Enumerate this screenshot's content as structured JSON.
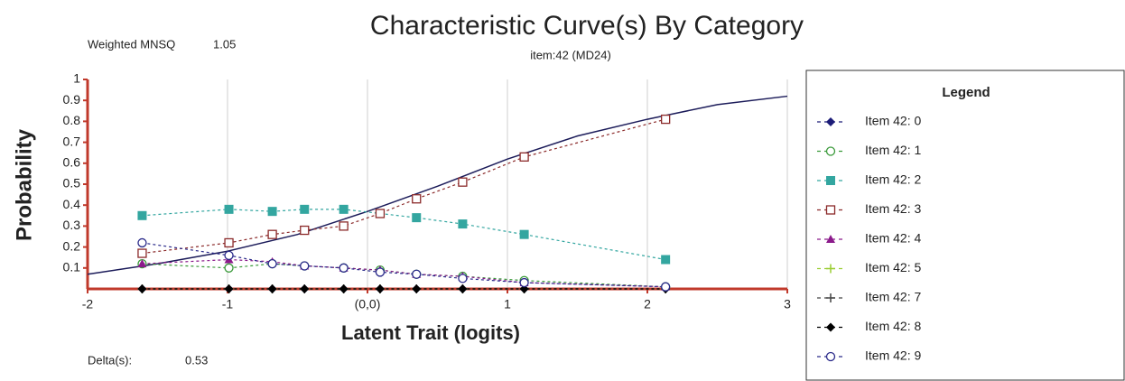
{
  "chart_data": {
    "type": "line",
    "title": "Characteristic Curve(s) By Category",
    "subtitle": "item:42 (MD24)",
    "fit_label": "Weighted MNSQ",
    "fit_value": 1.05,
    "delta_label": "Delta(s):",
    "delta_value": 0.53,
    "x_label": "Latent Trait (logits)",
    "y_label": "Probability",
    "legend_title": "Legend",
    "legend": "right",
    "grid": "x",
    "xlim": [
      -2,
      3
    ],
    "xticks": [
      -2,
      -1,
      {
        "value": 0,
        "label": "(0,0)"
      },
      1,
      2,
      3
    ],
    "ylim": [
      0,
      1
    ],
    "yticks": [
      0.1,
      0.2,
      0.3,
      0.4,
      0.5,
      0.6,
      0.7,
      0.8,
      0.9,
      1
    ],
    "x": [
      -1.61,
      -0.99,
      -0.68,
      -0.45,
      -0.17,
      0.09,
      0.35,
      0.68,
      1.12,
      2.13
    ],
    "series": [
      {
        "name": "Item 42: 0",
        "color": "#1c1c78",
        "marker": "diamond",
        "values": [
          0,
          0,
          0,
          0,
          0,
          0,
          0,
          0,
          0,
          0
        ]
      },
      {
        "name": "Item 42: 1",
        "color": "#3a9a3a",
        "marker": "circle-open",
        "values": [
          0.12,
          0.1,
          0.12,
          0.11,
          0.1,
          0.09,
          0.07,
          0.06,
          0.04,
          0.01
        ]
      },
      {
        "name": "Item 42: 2",
        "color": "#33a6a0",
        "marker": "square",
        "values": [
          0.35,
          0.38,
          0.37,
          0.38,
          0.38,
          0.36,
          0.34,
          0.31,
          0.26,
          0.14
        ]
      },
      {
        "name": "Item 42: 3",
        "color": "#8b2a2a",
        "marker": "square-open",
        "values": [
          0.17,
          0.22,
          0.26,
          0.28,
          0.3,
          0.36,
          0.43,
          0.51,
          0.63,
          0.81
        ]
      },
      {
        "name": "Item 42: 4",
        "color": "#8b1a8b",
        "marker": "triangle",
        "values": [
          0.12,
          0.14,
          0.13,
          0.11,
          0.1,
          0.09,
          0.07,
          0.06,
          0.03,
          0.01
        ]
      },
      {
        "name": "Item 42: 5",
        "color": "#9acd32",
        "marker": "plus",
        "values": [
          0,
          0,
          0,
          0,
          0,
          0,
          0,
          0,
          0,
          0
        ]
      },
      {
        "name": "Item 42: 7",
        "color": "#444444",
        "marker": "plus",
        "values": [
          0,
          0,
          0,
          0,
          0,
          0,
          0,
          0,
          0,
          0
        ]
      },
      {
        "name": "Item 42: 8",
        "color": "#000000",
        "marker": "diamond",
        "values": [
          0,
          0,
          0,
          0,
          0,
          0,
          0,
          0,
          0,
          0
        ]
      },
      {
        "name": "Item 42: 9",
        "color": "#2a2a8a",
        "marker": "circle-open",
        "values": [
          0.22,
          0.16,
          0.12,
          0.11,
          0.1,
          0.08,
          0.07,
          0.05,
          0.03,
          0.01
        ]
      }
    ],
    "model_curve": {
      "color": "#1c1c5a",
      "x": [
        -2,
        -1.5,
        -1,
        -0.5,
        0,
        0.5,
        1,
        1.5,
        2,
        2.5,
        3
      ],
      "values": [
        0.07,
        0.12,
        0.18,
        0.26,
        0.37,
        0.49,
        0.62,
        0.73,
        0.81,
        0.88,
        0.92
      ]
    }
  }
}
